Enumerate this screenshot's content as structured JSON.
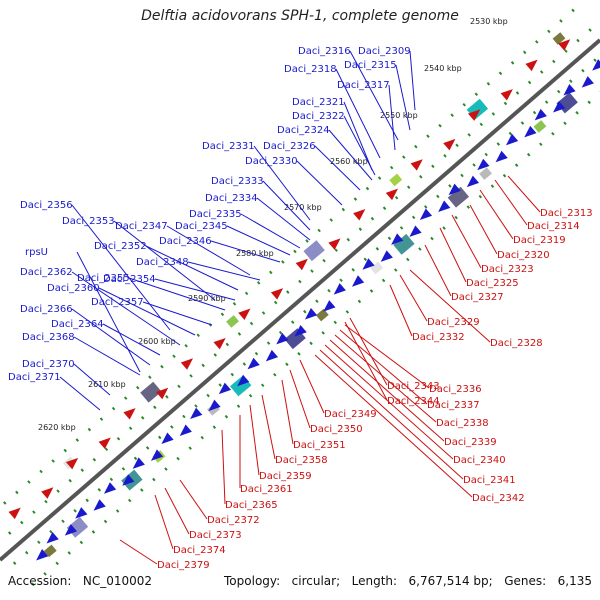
{
  "title": "Delftia acidovorans SPH-1, complete genome",
  "footer": {
    "accession_label": "Accession:",
    "accession": "NC_010002",
    "topology_label": "Topology:",
    "topology": "circular;",
    "length_label": "Length:",
    "length": "6,767,514 bp;",
    "genes_label": "Genes:",
    "genes": "6,135"
  },
  "colors": {
    "forward": "#1a1acc",
    "reverse": "#cc1111",
    "axis": "#555555",
    "ticks": "#2a8a2a"
  },
  "kbp_ticks": [
    "2530 kbp",
    "2540 kbp",
    "2550 kbp",
    "2560 kbp",
    "2570 kbp",
    "2580 kbp",
    "2590 kbp",
    "2600 kbp",
    "2610 kbp",
    "2620 kbp"
  ],
  "forward_genes": [
    "Daci_2309",
    "Daci_2315",
    "Daci_2316",
    "Daci_2317",
    "Daci_2318",
    "Daci_2321",
    "Daci_2322",
    "Daci_2324",
    "Daci_2326",
    "Daci_2330",
    "Daci_2331",
    "Daci_2333",
    "Daci_2334",
    "Daci_2335",
    "Daci_2345",
    "Daci_2346",
    "Daci_2347",
    "Daci_2348",
    "Daci_2352",
    "Daci_2353",
    "Daci_2354",
    "Daci_2355",
    "Daci_2356",
    "Daci_2357",
    "Daci_2360",
    "Daci_2362",
    "Daci_2364",
    "Daci_2366",
    "Daci_2368",
    "Daci_2370",
    "Daci_2371",
    "rpsU"
  ],
  "reverse_genes": [
    "Daci_2313",
    "Daci_2314",
    "Daci_2319",
    "Daci_2320",
    "Daci_2323",
    "Daci_2325",
    "Daci_2327",
    "Daci_2328",
    "Daci_2329",
    "Daci_2332",
    "Daci_2336",
    "Daci_2337",
    "Daci_2338",
    "Daci_2339",
    "Daci_2340",
    "Daci_2341",
    "Daci_2342",
    "Daci_2343",
    "Daci_2344",
    "Daci_2349",
    "Daci_2350",
    "Daci_2351",
    "Daci_2358",
    "Daci_2359",
    "Daci_2361",
    "Daci_2365",
    "Daci_2372",
    "Daci_2373",
    "Daci_2374",
    "Daci_2379"
  ]
}
